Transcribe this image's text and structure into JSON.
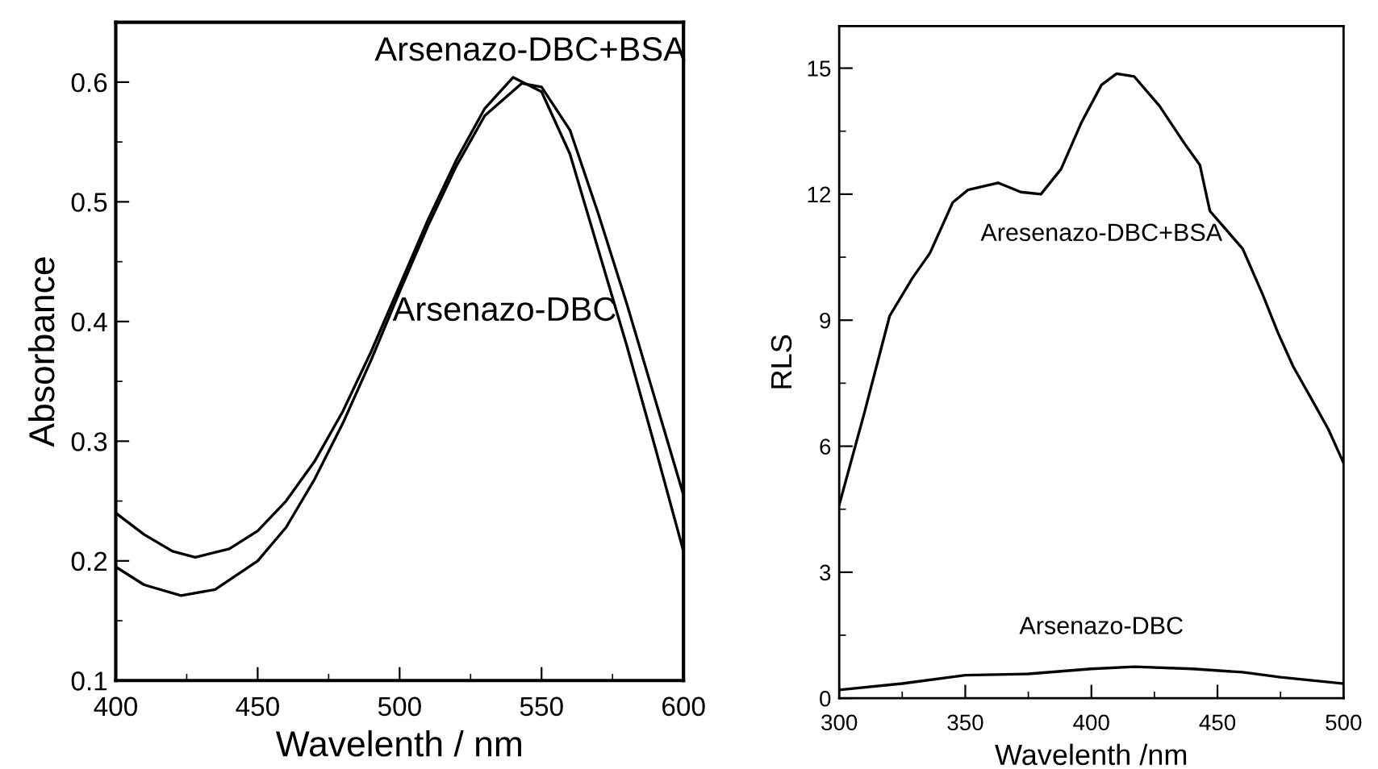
{
  "chart_data": [
    {
      "type": "line",
      "xlabel": "Wavelenth / nm",
      "ylabel": "Absorbance",
      "xlim": [
        400,
        600
      ],
      "ylim": [
        0.1,
        0.65
      ],
      "xticks": [
        400,
        450,
        500,
        550,
        600
      ],
      "yticks": [
        0.1,
        0.2,
        0.3,
        0.4,
        0.5,
        0.6
      ],
      "grid": false,
      "marker": "none",
      "line_style": "solid",
      "series": [
        {
          "color": "#000000",
          "x": [
            400,
            410,
            420,
            428,
            440,
            450,
            460,
            470,
            480,
            490,
            500,
            510,
            520,
            530,
            540,
            550,
            560,
            570,
            580,
            590,
            600
          ],
          "values": [
            0.24,
            0.222,
            0.208,
            0.203,
            0.21,
            0.225,
            0.25,
            0.283,
            0.325,
            0.375,
            0.43,
            0.485,
            0.535,
            0.578,
            0.604,
            0.592,
            0.54,
            0.46,
            0.38,
            0.295,
            0.208
          ]
        },
        {
          "color": "#000000",
          "x": [
            400,
            410,
            423,
            435,
            450,
            460,
            470,
            480,
            490,
            500,
            510,
            520,
            530,
            543,
            550,
            560,
            570,
            580,
            590,
            600
          ],
          "values": [
            0.195,
            0.18,
            0.171,
            0.176,
            0.2,
            0.228,
            0.268,
            0.315,
            0.368,
            0.425,
            0.48,
            0.53,
            0.572,
            0.599,
            0.596,
            0.56,
            0.49,
            0.415,
            0.335,
            0.255
          ]
        }
      ],
      "annotations": [
        "Arsenazo-DBC+BSA",
        "Arsenazo-DBC"
      ]
    },
    {
      "type": "line",
      "xlabel": "Wavelenth /nm",
      "ylabel": "RLS",
      "xlim": [
        300,
        500
      ],
      "ylim": [
        0,
        16
      ],
      "xticks": [
        300,
        350,
        400,
        450,
        500
      ],
      "yticks": [
        0,
        3,
        6,
        9,
        12,
        15
      ],
      "grid": false,
      "marker": "none",
      "line_style": "solid",
      "series": [
        {
          "color": "#000000",
          "x": [
            300,
            310,
            320,
            329,
            336,
            345,
            351,
            363,
            372,
            380,
            388,
            396,
            404,
            410,
            417,
            427,
            437,
            443,
            447,
            460,
            468,
            474,
            480,
            488,
            494,
            500
          ],
          "values": [
            4.6,
            6.8,
            9.1,
            10.0,
            10.6,
            11.8,
            12.1,
            12.27,
            12.05,
            12.0,
            12.6,
            13.7,
            14.6,
            14.87,
            14.8,
            14.1,
            13.2,
            12.7,
            11.6,
            10.7,
            9.6,
            8.7,
            7.9,
            7.05,
            6.4,
            5.6
          ]
        },
        {
          "color": "#000000",
          "x": [
            300,
            325,
            350,
            375,
            400,
            417,
            440,
            460,
            475,
            500
          ],
          "values": [
            0.2,
            0.35,
            0.55,
            0.58,
            0.7,
            0.75,
            0.7,
            0.62,
            0.5,
            0.35
          ]
        }
      ],
      "annotations": [
        "Aresenazo-DBC+BSA",
        "Arsenazo-DBC"
      ]
    }
  ]
}
